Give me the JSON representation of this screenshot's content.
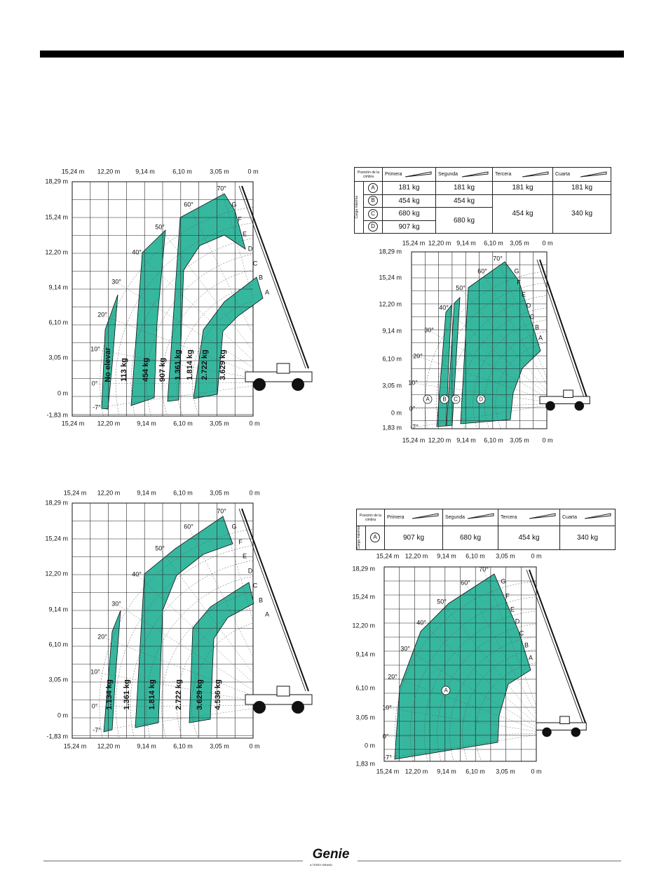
{
  "charts": [
    {
      "x_top": [
        "15,24 m",
        "12,20 m",
        "9,14 m",
        "6,10 m",
        "3,05 m",
        "0 m"
      ],
      "y_labels": [
        "18,29 m",
        "15,24 m",
        "12,20 m",
        "9,14 m",
        "6,10 m",
        "3,05 m",
        "0 m",
        "-1,83 m"
      ],
      "x_bottom": [
        "15,24 m",
        "12,20 m",
        "9,14 m",
        "6,10 m",
        "3,05 m",
        "0 m"
      ],
      "angles": [
        "70°",
        "60°",
        "50°",
        "40°",
        "30°",
        "20°",
        "10°",
        "0°",
        "-7°"
      ],
      "extensions": [
        "G",
        "F",
        "E",
        "D",
        "C",
        "B",
        "A"
      ],
      "zones": [
        "No elevar",
        "113 kg",
        "454 kg",
        "907 kg",
        "1.361 kg",
        "1.814 kg",
        "2.722 kg",
        "3.629 kg"
      ]
    },
    {
      "x_top": [
        "15,24 m",
        "12,20 m",
        "9,14 m",
        "6,10 m",
        "3,05 m",
        "0 m"
      ],
      "y_labels": [
        "18,29 m",
        "15,24 m",
        "12,20 m",
        "9,14 m",
        "6,10 m",
        "3,05 m",
        "0 m",
        "1,83 m"
      ],
      "x_bottom": [
        "15,24 m",
        "12,20 m",
        "9,14 m",
        "6,10 m",
        "3,05 m",
        "0 m"
      ],
      "angles": [
        "70°",
        "60°",
        "50°",
        "40°",
        "30°",
        "20°",
        "10°",
        "0°",
        "-7°"
      ],
      "extensions": [
        "G",
        "F",
        "E",
        "D",
        "C",
        "B",
        "A"
      ],
      "zones": [
        "A",
        "B",
        "C",
        "D"
      ]
    },
    {
      "x_top": [
        "15,24 m",
        "12,20 m",
        "9,14 m",
        "6,10 m",
        "3,05 m",
        "0 m"
      ],
      "y_labels": [
        "18,29 m",
        "15,24 m",
        "12,20 m",
        "9,14 m",
        "6,10 m",
        "3,05 m",
        "0 m",
        "-1,83 m"
      ],
      "x_bottom": [
        "15,24 m",
        "12,20 m",
        "9,14 m",
        "6,10 m",
        "3,05 m",
        "0 m"
      ],
      "angles": [
        "70°",
        "60°",
        "50°",
        "40°",
        "30°",
        "20°",
        "10°",
        "0°",
        "-7°"
      ],
      "extensions": [
        "G",
        "F",
        "E",
        "D",
        "C",
        "B",
        "A"
      ],
      "zones": [
        "1.134 kg",
        "1.361 kg",
        "1.814 kg",
        "2.722 kg",
        "3.629 kg",
        "4.536 kg"
      ]
    },
    {
      "x_top": [
        "15,24 m",
        "12,20 m",
        "9,14 m",
        "6,10 m",
        "3,05 m",
        "0 m"
      ],
      "y_labels": [
        "18,29 m",
        "15,24 m",
        "12,20 m",
        "9,14 m",
        "6,10 m",
        "3,05 m",
        "0 m",
        "1,83 m"
      ],
      "x_bottom": [
        "15,24 m",
        "12,20 m",
        "9,14 m",
        "6,10 m",
        "3,05 m",
        "0 m"
      ],
      "angles": [
        "70°",
        "60°",
        "50°",
        "40°",
        "30°",
        "20°",
        "10°",
        "0°",
        "-7°"
      ],
      "extensions": [
        "G",
        "F",
        "E",
        "D",
        "C",
        "B",
        "A"
      ],
      "zones": [
        "A"
      ]
    }
  ],
  "table_1": {
    "header": [
      "Posición de la cimbra",
      "Primera",
      "Segunda",
      "Tercera",
      "Cuarta"
    ],
    "row_label": "Carga máxima",
    "rows": [
      [
        "A",
        "181 kg",
        "181 kg",
        "181 kg",
        "181 kg"
      ],
      [
        "B",
        "454 kg",
        "454 kg",
        "454 kg",
        "340 kg"
      ],
      [
        "C",
        "680 kg",
        "680 kg"
      ],
      [
        "D",
        "907 kg"
      ]
    ]
  },
  "table_2": {
    "header": [
      "Posición de la cimbra",
      "Primera",
      "Segunda",
      "Tercera",
      "Cuarta"
    ],
    "row_label": "Carga máxima",
    "rows": [
      [
        "A",
        "907 kg",
        "680 kg",
        "454 kg",
        "340 kg"
      ]
    ]
  },
  "footer": {
    "logo": "Genie",
    "tagline": "A TEREX BRAND"
  }
}
